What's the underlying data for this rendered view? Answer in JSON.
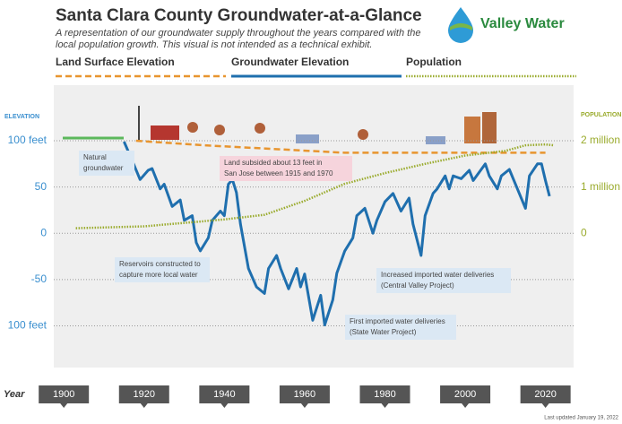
{
  "header": {
    "title": "Santa Clara County Groundwater-at-a-Glance",
    "subtitle": [
      "A representation of our groundwater supply throughout the years compared with the",
      "local population growth. This visual is not intended as a technical exhibit."
    ],
    "logo": "Valley Water"
  },
  "chart_data": {
    "type": "line",
    "y_axis_label": "ELEVATION",
    "y2_axis_label": "POPULATION",
    "x_axis_label": "Year",
    "xlim": [
      1897.5,
      2027
    ],
    "xticks": [
      1900,
      1920,
      1940,
      1960,
      1980,
      2000,
      2020
    ],
    "ylim": [
      -145,
      160
    ],
    "yticks": [
      {
        "value": 100,
        "label": "100 feet"
      },
      50,
      0,
      -50,
      {
        "value": -100,
        "label": "100 feet"
      }
    ],
    "y2lim": [
      -2900000,
      3200000
    ],
    "y2ticks": [
      {
        "value": 2000000,
        "label": "2 million"
      },
      {
        "value": 1000000,
        "label": "1 million"
      },
      0
    ],
    "grid": true,
    "series": [
      {
        "name": "Land Surface Elevation",
        "color": "#e8952f",
        "style": "dashed",
        "x": [
          1918,
          1935,
          1970,
          2020
        ],
        "values": [
          100,
          95,
          87,
          87
        ]
      },
      {
        "name": "Groundwater Elevation",
        "color": "#1f6fae",
        "style": "solid",
        "x": [
          1915,
          1917,
          1919,
          1921,
          1922,
          1924,
          1925,
          1927,
          1929,
          1930,
          1932,
          1933,
          1934,
          1936,
          1937,
          1939,
          1940,
          1941,
          1942,
          1943,
          1944,
          1946,
          1948,
          1950,
          1951,
          1953,
          1954,
          1956,
          1958,
          1959,
          1960,
          1962,
          1964,
          1965,
          1967,
          1968,
          1970,
          1972,
          1973,
          1975,
          1977,
          1978,
          1980,
          1982,
          1984,
          1986,
          1987,
          1989,
          1990,
          1992,
          1993,
          1995,
          1996,
          1997,
          1999,
          2001,
          2002,
          2005,
          2006,
          2008,
          2009,
          2011,
          2013,
          2015,
          2016,
          2018,
          2019,
          2020,
          2021
        ],
        "values": [
          99,
          79,
          58,
          68,
          70,
          48,
          53,
          29,
          36,
          14,
          19,
          -10,
          -19,
          -5,
          14,
          24,
          19,
          53,
          58,
          44,
          10,
          -38,
          -58,
          -65,
          -38,
          -24,
          -38,
          -60,
          -38,
          -58,
          -44,
          -94,
          -67,
          -99,
          -72,
          -43,
          -19,
          -5,
          19,
          27,
          0,
          14,
          34,
          43,
          24,
          38,
          10,
          -24,
          19,
          43,
          48,
          62,
          48,
          62,
          59,
          68,
          57,
          75,
          62,
          48,
          62,
          69,
          48,
          27,
          62,
          75,
          75,
          57,
          40
        ]
      },
      {
        "name": "Population",
        "color": "#9aab2d",
        "style": "dotted",
        "axis": "y2",
        "x": [
          1903,
          1920,
          1940,
          1950,
          1960,
          1970,
          1980,
          1990,
          2000,
          2010,
          2015,
          2020,
          2022
        ],
        "values": [
          110000,
          150000,
          300000,
          400000,
          700000,
          1070000,
          1300000,
          1500000,
          1680000,
          1780000,
          1900000,
          1920000,
          1900000
        ]
      }
    ],
    "annotations": [
      {
        "text": [
          "Natural",
          "groundwater"
        ]
      },
      {
        "text": [
          "Land subsided about 13 feet in",
          "San Jose between 1915 and 1970"
        ]
      },
      {
        "text": [
          "Reservoirs constructed to",
          "capture more local water"
        ]
      },
      {
        "text": [
          "Increased imported water deliveries",
          "(Central Valley Project)"
        ]
      },
      {
        "text": [
          "First imported water deliveries",
          "(State Water Project)"
        ]
      }
    ]
  },
  "footer": "Last updated January 19, 2022"
}
